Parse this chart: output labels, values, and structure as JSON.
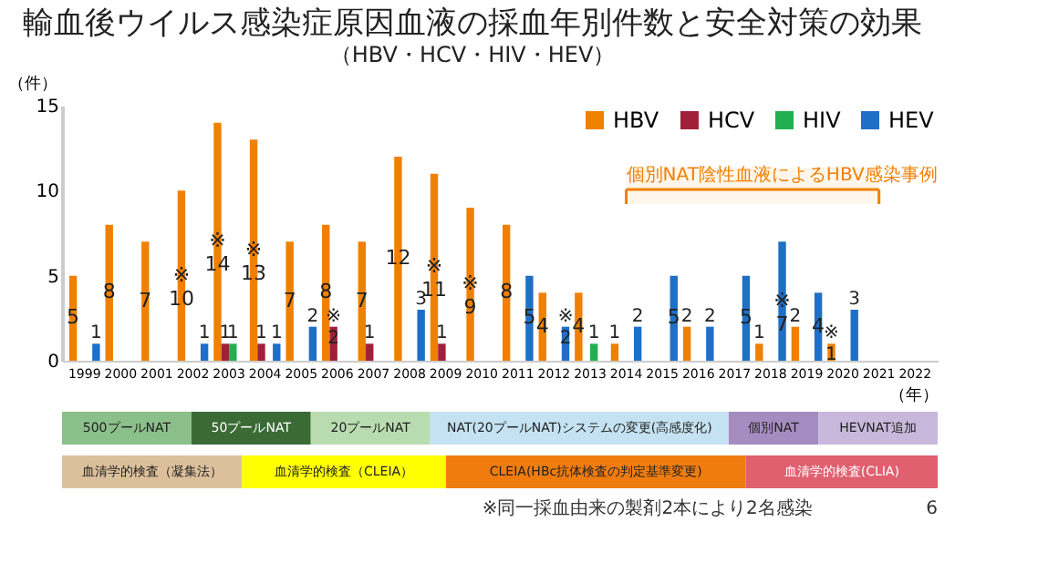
{
  "chart_data": [
    {
      "type": "bar",
      "title": "輸血後ウイルス感染症原因血液の採血年別件数と安全対策の効果",
      "subtitle": "（HBV・HCV・HIV・HEV）",
      "ylabel": "（件）",
      "xlabel": "（年）",
      "categories": [
        "1999",
        "2000",
        "2001",
        "2002",
        "2003",
        "2004",
        "2005",
        "2006",
        "2007",
        "2008",
        "2009",
        "2010",
        "2011",
        "2012",
        "2013",
        "2014",
        "2015",
        "2016",
        "2017",
        "2018",
        "2019",
        "2020",
        "2021",
        "2022"
      ],
      "series": [
        {
          "name": "HBV",
          "color": "#f08000",
          "values": [
            5,
            8,
            7,
            10,
            14,
            13,
            7,
            8,
            7,
            12,
            11,
            9,
            8,
            4,
            4,
            1,
            null,
            2,
            null,
            1,
            2,
            1,
            null,
            null
          ],
          "value_labels": [
            "5",
            "8",
            "7",
            "※\n10",
            "※\n14",
            "※\n13",
            "7",
            "8",
            "7",
            "12",
            "※\n11",
            "※\n9",
            "8",
            "4",
            "4",
            "1",
            null,
            "2",
            null,
            "1",
            "2",
            "※\n1",
            null,
            null
          ]
        },
        {
          "name": "HCV",
          "color": "#a0203a",
          "values": [
            null,
            null,
            null,
            null,
            1,
            1,
            null,
            2,
            1,
            null,
            1,
            null,
            null,
            null,
            null,
            null,
            null,
            null,
            null,
            null,
            null,
            null,
            null,
            null
          ],
          "value_labels": [
            null,
            null,
            null,
            null,
            "1",
            "1",
            null,
            "※\n2",
            "1",
            null,
            "1",
            null,
            null,
            null,
            null,
            null,
            null,
            null,
            null,
            null,
            null,
            null,
            null,
            null
          ]
        },
        {
          "name": "HIV",
          "color": "#20b050",
          "values": [
            null,
            null,
            null,
            null,
            1,
            null,
            null,
            null,
            null,
            null,
            null,
            null,
            null,
            null,
            1,
            null,
            null,
            null,
            null,
            null,
            null,
            null,
            null,
            null
          ],
          "value_labels": [
            null,
            null,
            null,
            null,
            "1",
            null,
            null,
            null,
            null,
            null,
            null,
            null,
            null,
            null,
            "1",
            null,
            null,
            null,
            null,
            null,
            null,
            null,
            null,
            null
          ]
        },
        {
          "name": "HEV",
          "color": "#1f6fc6",
          "values": [
            1,
            null,
            null,
            1,
            null,
            1,
            2,
            null,
            null,
            3,
            null,
            null,
            5,
            2,
            null,
            2,
            5,
            2,
            5,
            7,
            4,
            3,
            null,
            null
          ],
          "value_labels": [
            "1",
            null,
            null,
            "1",
            null,
            "1",
            "2",
            null,
            null,
            "3",
            null,
            null,
            "5",
            "※\n2",
            null,
            "2",
            "5",
            "2",
            "5",
            "※\n7",
            "4",
            "3",
            null,
            null
          ]
        }
      ],
      "ylim": [
        0,
        15
      ],
      "yticks": [
        0,
        5,
        10,
        15
      ],
      "grid": false,
      "legend": "top right",
      "bands": [
        {
          "axis": "x",
          "from": "2014",
          "to": "2021",
          "label": "個別NAT陰性血液によるHBV感染事例",
          "color": "#f08000"
        }
      ],
      "annotations": [
        "※同一採血由来の製剤2本により2名感染",
        "6"
      ]
    },
    {
      "type": "other",
      "annotations": [
        "500プールNAT",
        "50プールNAT",
        "20プールNAT",
        "NAT(20プールNAT)システムの変更(高感度化)",
        "個別NAT",
        "HEVNAT追加"
      ],
      "colors": [
        "#8cc08a",
        "#3a6b35",
        "#b8dcb0",
        "#c4e2f2",
        "#a58cc0",
        "#c8b8dc"
      ]
    },
    {
      "type": "other",
      "annotations": [
        "血清学的検査（凝集法）",
        "血清学的検査（CLEIA）",
        "CLEIA(HBc抗体検査の判定基準変更)",
        "血清学的検査(CLIA)"
      ],
      "colors": [
        "#dcc09c",
        "#ffff00",
        "#f07c10",
        "#e06070"
      ]
    }
  ]
}
